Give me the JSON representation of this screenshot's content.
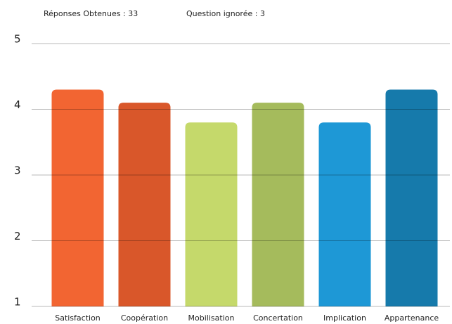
{
  "chart_data": {
    "type": "bar",
    "annotations": [
      "Réponses Obtenues : 33",
      "Question ignorée : 3"
    ],
    "categories": [
      "Satisfaction",
      "Coopération",
      "Mobilisation",
      "Concertation",
      "Implication",
      "Appartenance"
    ],
    "values": [
      4.3,
      4.1,
      3.8,
      4.1,
      3.8,
      4.3
    ],
    "colors": [
      "#f26532",
      "#d9572a",
      "#c5d96b",
      "#a5bb5c",
      "#1e98d6",
      "#167aab"
    ],
    "ylim": [
      1,
      5
    ],
    "yticks": [
      1,
      2,
      3,
      4,
      5
    ],
    "grid": true
  }
}
